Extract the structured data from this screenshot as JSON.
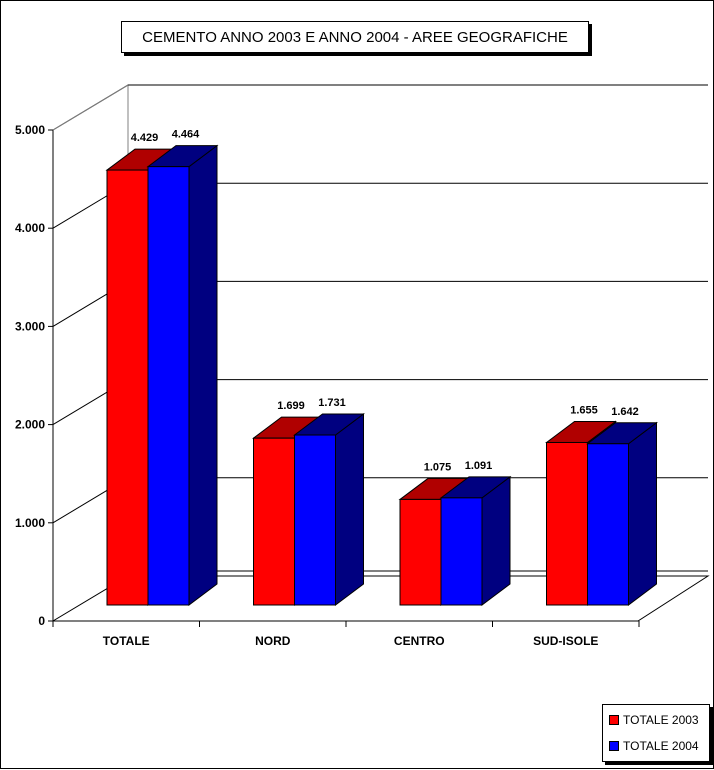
{
  "chart_data": {
    "type": "bar",
    "title": "CEMENTO ANNO 2003 E ANNO 2004 - AREE GEOGRAFICHE",
    "categories": [
      "TOTALE",
      "NORD",
      "CENTRO",
      "SUD-ISOLE"
    ],
    "series": [
      {
        "name": "TOTALE 2003",
        "color": "#ff0000",
        "dark": "#b00000",
        "values": [
          4429,
          1699,
          1075,
          1655
        ],
        "labels": [
          "4.429",
          "1.699",
          "1.075",
          "1.655"
        ]
      },
      {
        "name": "TOTALE 2004",
        "color": "#0000ff",
        "dark": "#000080",
        "values": [
          4464,
          1731,
          1091,
          1642
        ],
        "labels": [
          "4.464",
          "1.731",
          "1.091",
          "1.642"
        ]
      }
    ],
    "ylim": [
      0,
      5000
    ],
    "yticks": [
      0,
      1000,
      2000,
      3000,
      4000,
      5000
    ],
    "ytick_labels": [
      "0",
      "1.000",
      "2.000",
      "3.000",
      "4.000",
      "5.000"
    ],
    "grid": true,
    "legend_position": "bottom-right",
    "style": "3d-bar"
  }
}
